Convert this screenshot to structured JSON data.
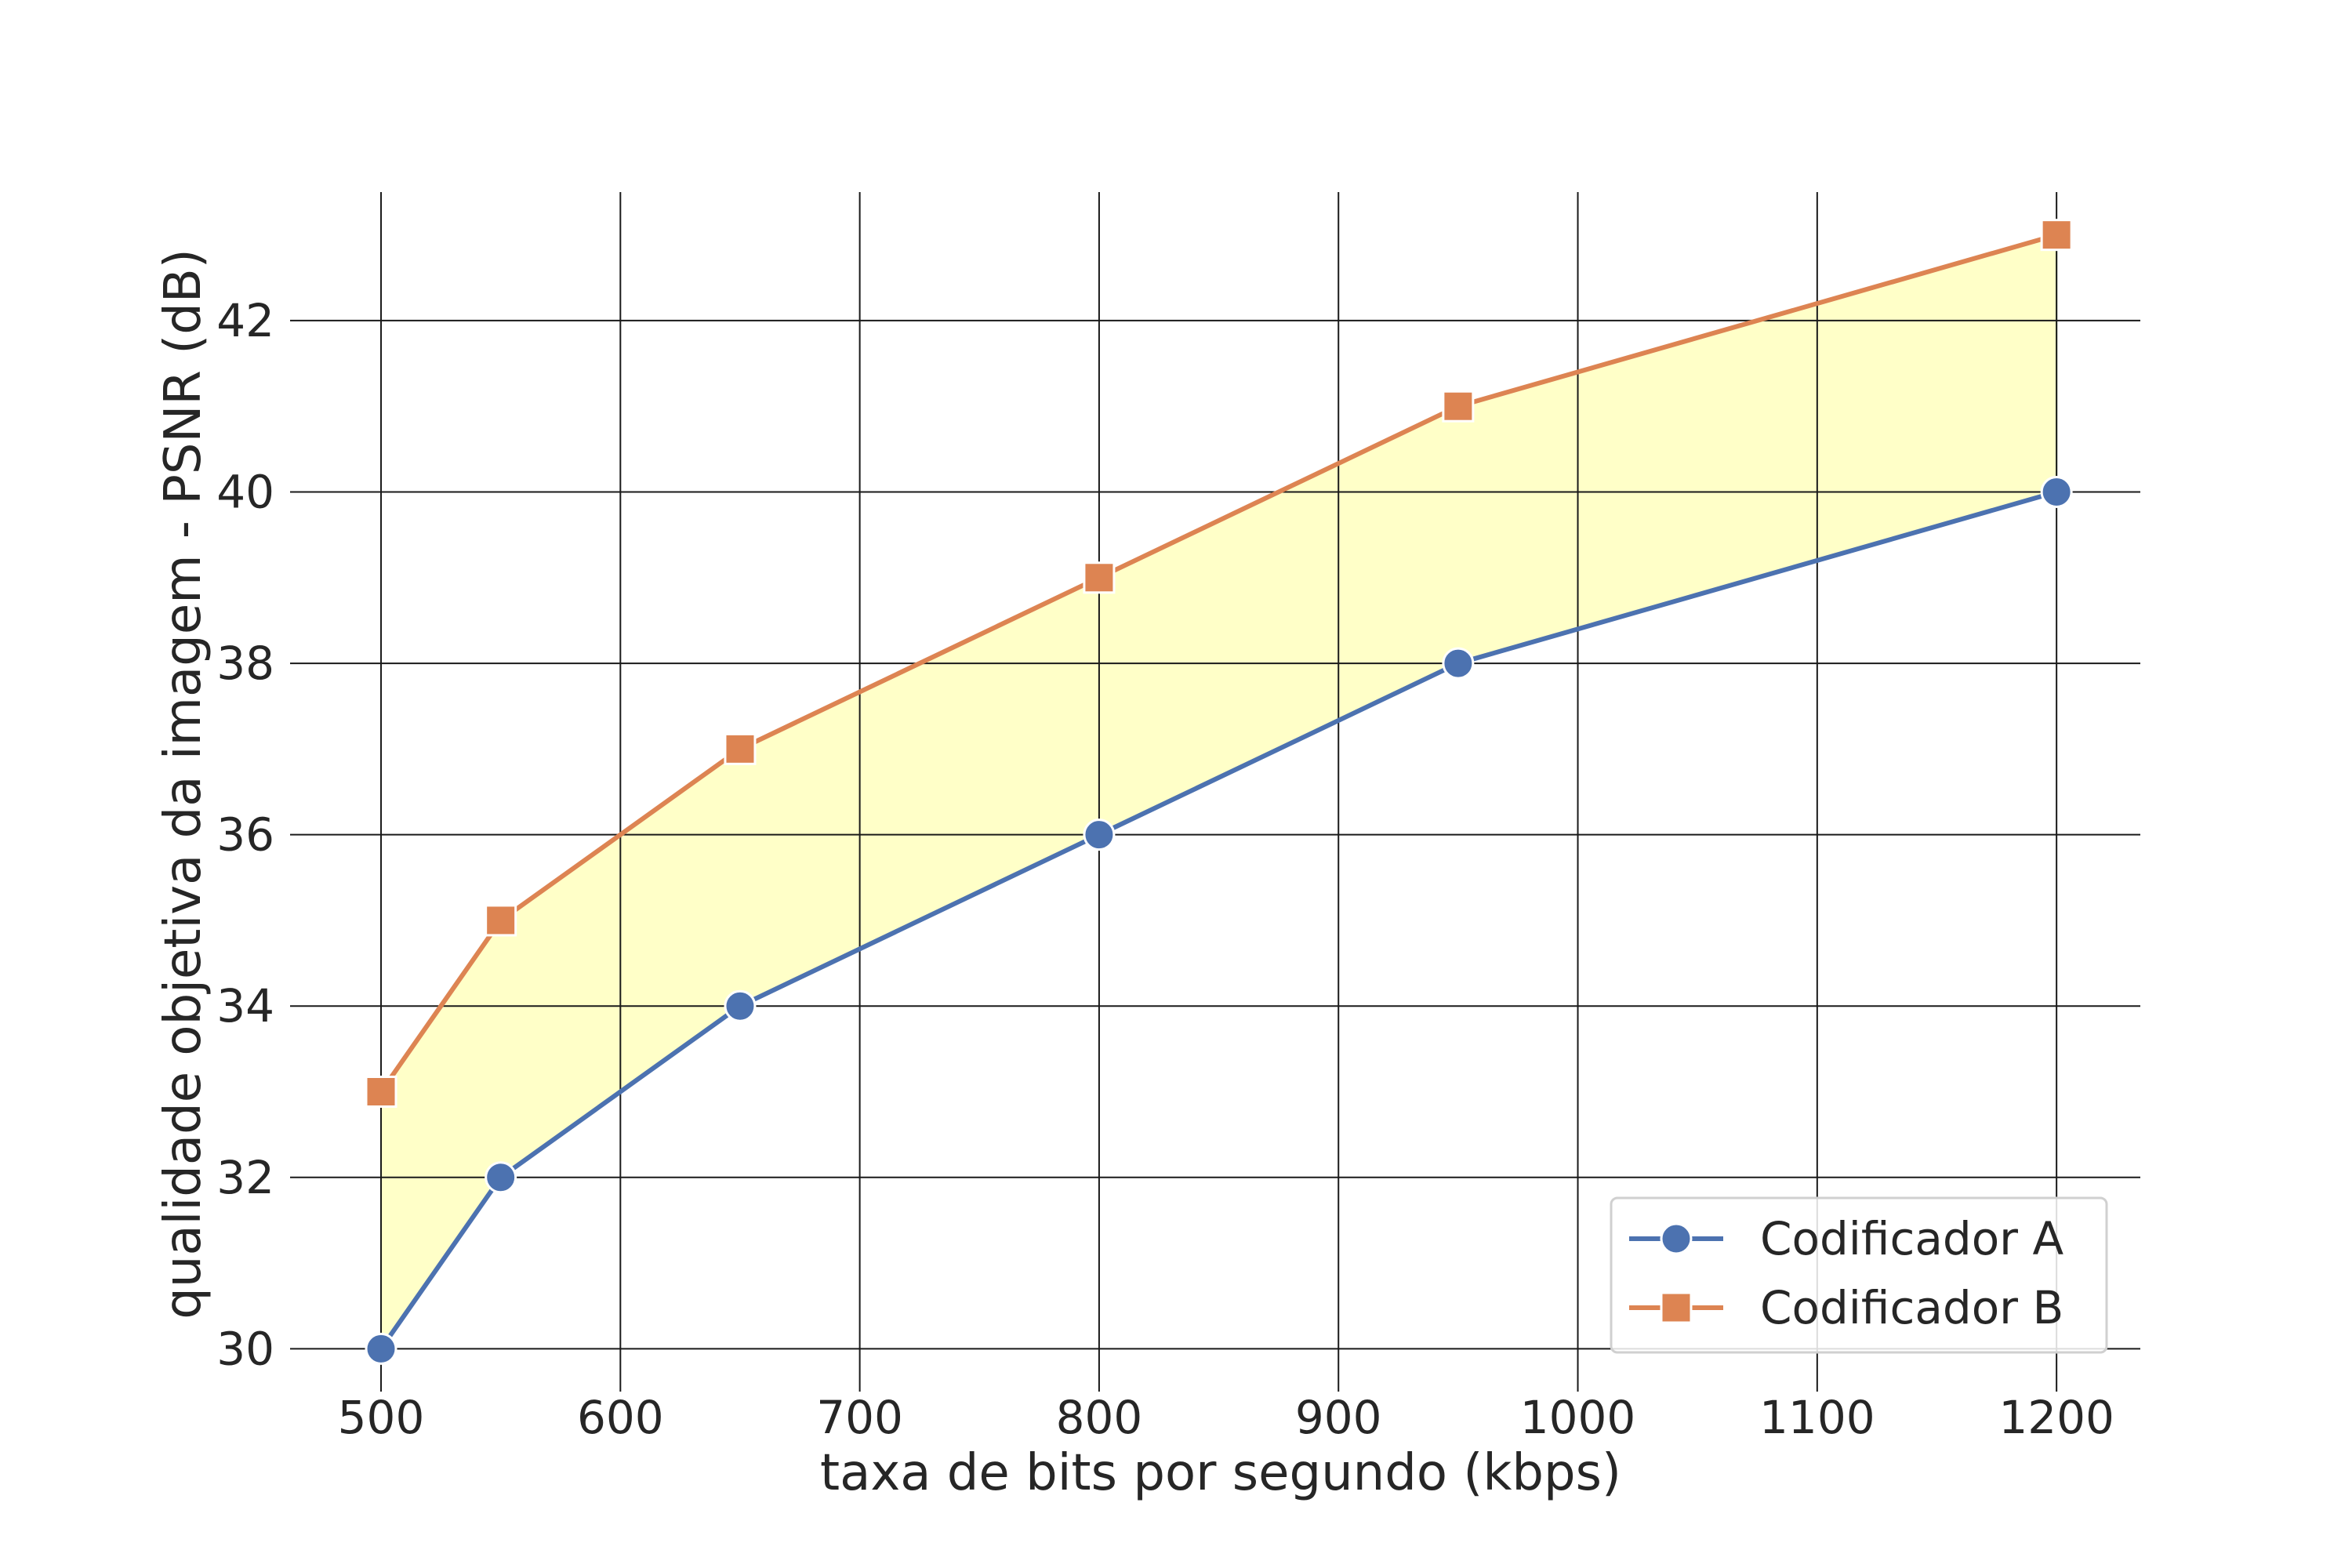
{
  "chart_data": {
    "type": "line",
    "xlabel": "taxa de bits por segundo (kbps)",
    "ylabel": "qualidade objetiva da imagem - PSNR (dB)",
    "x_ticks": [
      500,
      600,
      700,
      800,
      900,
      1000,
      1100,
      1200
    ],
    "y_ticks": [
      30,
      32,
      34,
      36,
      38,
      40,
      42
    ],
    "xlim": [
      462,
      1235
    ],
    "ylim": [
      29.5,
      43.5
    ],
    "grid": true,
    "legend_position": "bottom-right",
    "fill_between": {
      "color": "#ffffc8",
      "edge_color": "#7ab648"
    },
    "series": [
      {
        "name": "Codificador A",
        "color": "#4c72b0",
        "marker": "circle",
        "x": [
          500,
          550,
          650,
          800,
          950,
          1200
        ],
        "y": [
          30,
          32,
          34,
          36,
          38,
          40
        ]
      },
      {
        "name": "Codificador B",
        "color": "#dd8452",
        "marker": "square",
        "x": [
          500,
          550,
          650,
          800,
          950,
          1200
        ],
        "y": [
          33,
          35,
          37,
          39,
          41,
          43
        ]
      }
    ]
  }
}
